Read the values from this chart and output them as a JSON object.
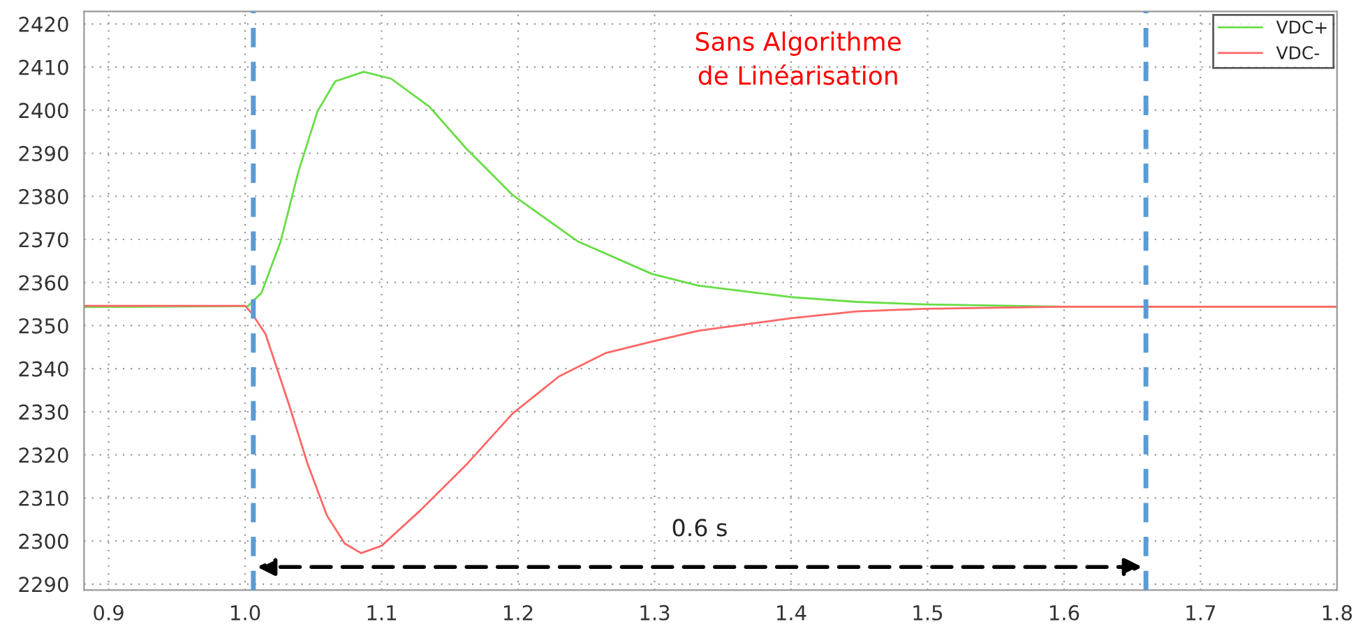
{
  "chart_data": {
    "type": "line",
    "annotations": [
      "Sans Algorithme\nde Linéarisation",
      "0.6 s"
    ],
    "series": [
      {
        "name": "VDC+",
        "color": "#66dd44",
        "x": [
          0.882,
          1.002,
          1.012,
          1.026,
          1.039,
          1.053,
          1.066,
          1.087,
          1.107,
          1.135,
          1.162,
          1.196,
          1.244,
          1.298,
          1.332,
          1.4,
          1.448,
          1.499,
          1.6,
          1.8
        ],
        "values": [
          2354.3,
          2354.5,
          2357.6,
          2369.5,
          2385.7,
          2399.7,
          2406.7,
          2408.9,
          2407.3,
          2400.8,
          2391.1,
          2380.3,
          2369.5,
          2362,
          2359.3,
          2356.6,
          2355.5,
          2354.9,
          2354.4,
          2354.4
        ]
      },
      {
        "name": "VDC-",
        "color": "#ff6666",
        "x": [
          0.882,
          1.0,
          1.005,
          1.015,
          1.032,
          1.046,
          1.06,
          1.073,
          1.085,
          1.1,
          1.128,
          1.162,
          1.196,
          1.23,
          1.264,
          1.298,
          1.332,
          1.4,
          1.448,
          1.499,
          1.6,
          1.8
        ],
        "values": [
          2354.6,
          2354.6,
          2352.8,
          2348,
          2331.8,
          2317.7,
          2305.9,
          2299.4,
          2297.2,
          2298.9,
          2307,
          2317.7,
          2329.6,
          2338.2,
          2343.6,
          2346.3,
          2348.8,
          2351.7,
          2353.3,
          2353.9,
          2354.4,
          2354.4
        ]
      }
    ],
    "ref_lines": [
      {
        "axis": "x",
        "value": 1.006,
        "color": "#5b9bd5",
        "line_style": "dashed"
      },
      {
        "axis": "x",
        "value": 1.66,
        "color": "#5b9bd5",
        "line_style": "dashed"
      }
    ],
    "xlim": [
      0.882,
      1.8
    ],
    "ylim": [
      2288.6,
      2422.9
    ],
    "xticks": [
      0.9,
      {
        "value": 1,
        "label": "1.0"
      },
      1.1,
      1.2,
      1.3,
      1.4,
      1.5,
      1.6,
      1.7,
      1.8
    ],
    "yticks": [
      2290,
      2300,
      2310,
      2320,
      2330,
      2340,
      2350,
      2360,
      2370,
      2380,
      2390,
      2400,
      2410,
      2420
    ],
    "grid": true,
    "legend": "top right"
  }
}
